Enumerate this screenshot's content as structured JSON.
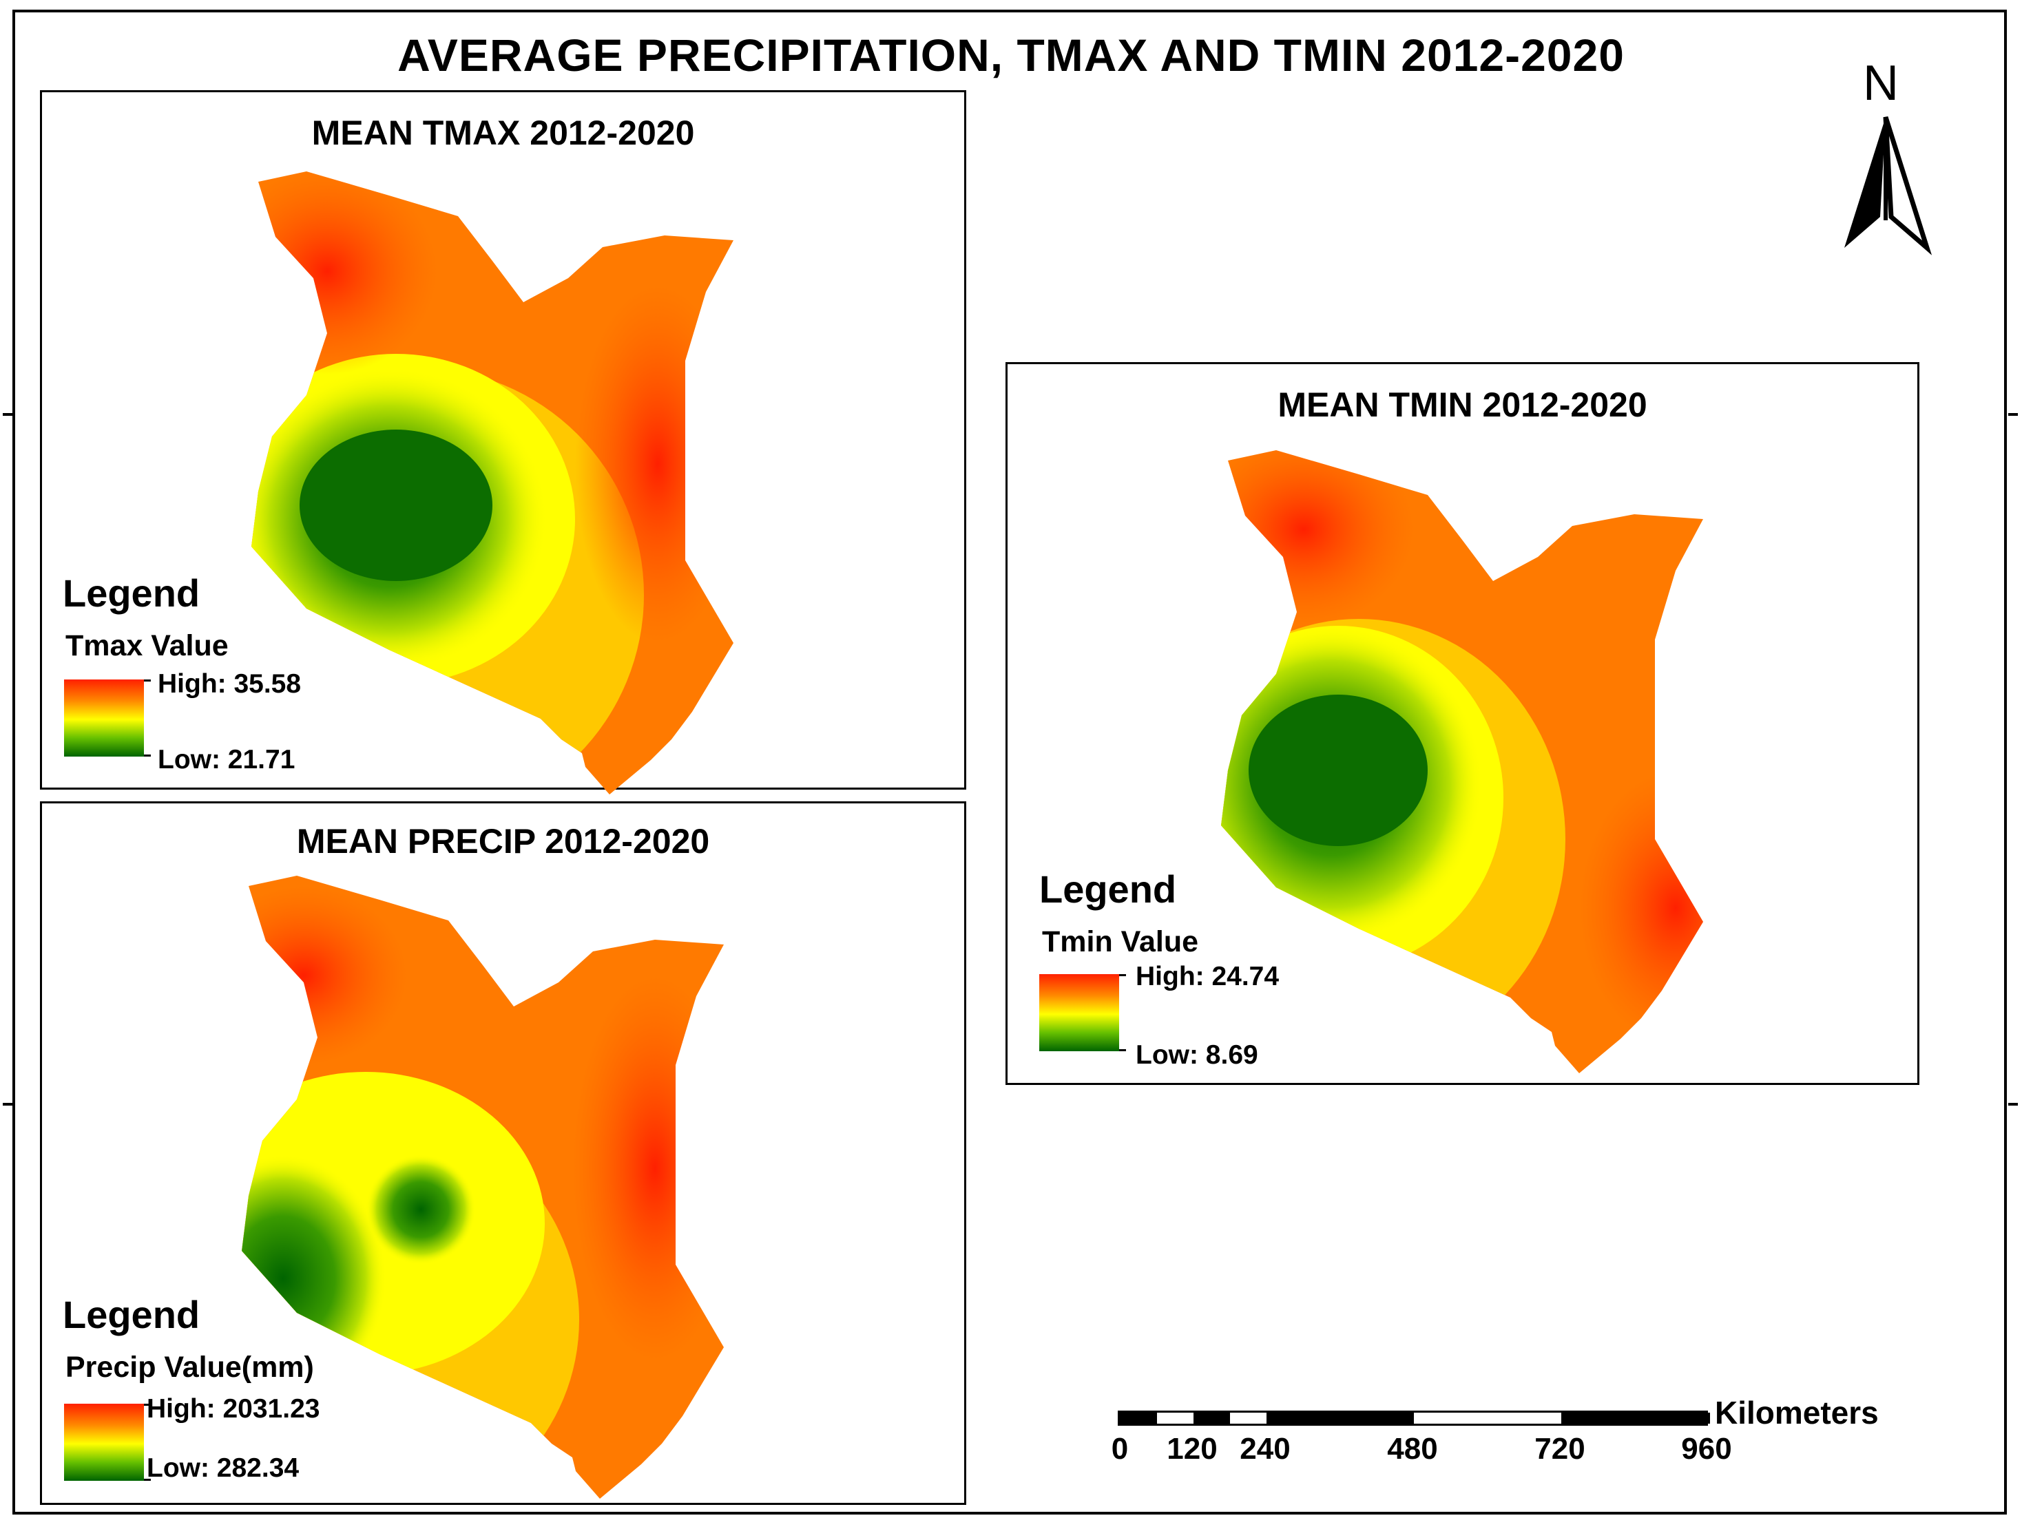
{
  "title": "AVERAGE PRECIPITATION, TMAX AND TMIN 2012-2020",
  "north_arrow": {
    "label": "N"
  },
  "panels": {
    "tmax": {
      "title": "MEAN TMAX 2012-2020",
      "legend": {
        "title": "Legend",
        "field": "Tmax Value",
        "high": "High: 35.58",
        "low": "Low: 21.71"
      }
    },
    "precip": {
      "title": "MEAN PRECIP 2012-2020",
      "legend": {
        "title": "Legend",
        "field": "Precip Value(mm)",
        "high": "High: 2031.23",
        "low": "Low: 282.34"
      }
    },
    "tmin": {
      "title": "MEAN TMIN 2012-2020",
      "legend": {
        "title": "Legend",
        "field": "Tmin Value",
        "high": "High: 24.74",
        "low": "Low: 8.69"
      }
    }
  },
  "scale_bar": {
    "unit": "Kilometers",
    "labels": [
      "0",
      "120",
      "240",
      "480",
      "720",
      "960"
    ]
  },
  "colors": {
    "high": "#ff2000",
    "mid": "#ffff00",
    "low": "#006400"
  }
}
